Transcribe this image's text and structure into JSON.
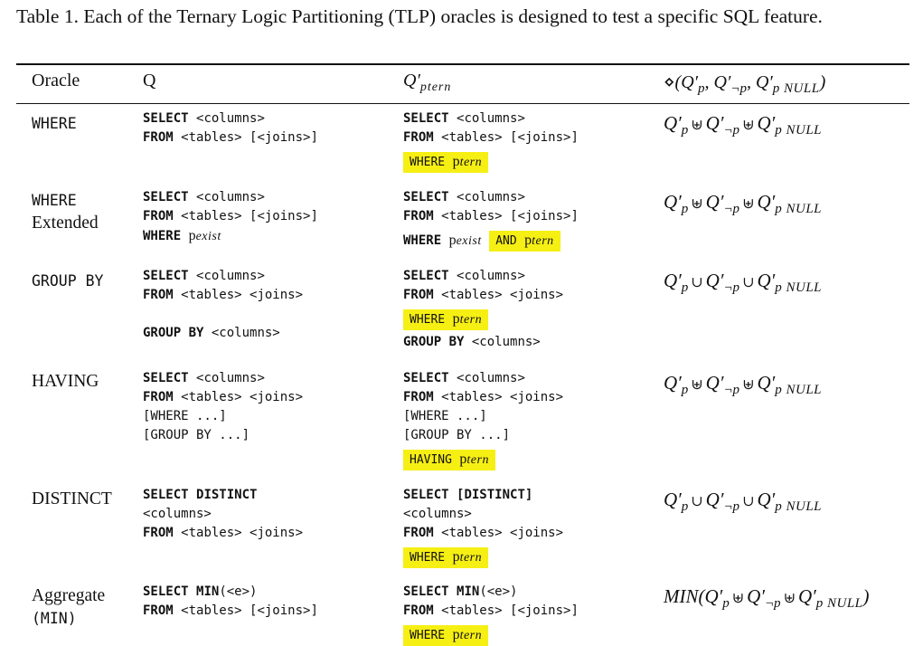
{
  "caption": "Table 1.  Each of the Ternary Logic Partitioning (TLP) oracles is designed to test a specific SQL feature.",
  "headers": {
    "oracle": "Oracle",
    "q": "Q",
    "qp_base": "Q′",
    "qp_sub": "ptern",
    "combine_prefix": "⋄(",
    "combine_suffix": ")"
  },
  "formula_parts": {
    "q": "Q′",
    "p": "p",
    "notp": "¬p",
    "pnull": "p NULL",
    "multiset_union": "⊎",
    "union": "∪",
    "min_prefix": "MIN(",
    "min_suffix": ")"
  },
  "rows": [
    {
      "oracle": "WHERE",
      "q": [
        "SELECT <columns>",
        "FROM <tables> [<joins>]"
      ],
      "qp": [
        "SELECT <columns>",
        "FROM <tables> [<joins>]",
        "WHERE ptern"
      ],
      "combine_op": "⊎"
    },
    {
      "oracle": "WHERE Extended",
      "q": [
        "SELECT <columns>",
        "FROM <tables> [<joins>]",
        "WHERE pexist"
      ],
      "qp": [
        "SELECT <columns>",
        "FROM <tables> [<joins>]",
        "WHERE pexist AND ptern"
      ],
      "combine_op": "⊎"
    },
    {
      "oracle": "GROUP BY",
      "q": [
        "SELECT <columns>",
        "FROM <tables> <joins>",
        "",
        "GROUP BY <columns>"
      ],
      "qp": [
        "SELECT <columns>",
        "FROM <tables> <joins>",
        "WHERE ptern",
        "GROUP BY <columns>"
      ],
      "combine_op": "∪"
    },
    {
      "oracle": "HAVING",
      "q": [
        "SELECT <columns>",
        "FROM <tables> <joins>",
        "[WHERE ...]",
        "[GROUP BY ...]"
      ],
      "qp": [
        "SELECT <columns>",
        "FROM <tables> <joins>",
        "[WHERE ...]",
        "[GROUP BY ...]",
        "HAVING ptern"
      ],
      "combine_op": "⊎"
    },
    {
      "oracle": "DISTINCT",
      "q": [
        "SELECT DISTINCT",
        "<columns>",
        "FROM <tables> <joins>"
      ],
      "qp": [
        "SELECT [DISTINCT]",
        "<columns>",
        "FROM <tables> <joins>",
        "WHERE ptern"
      ],
      "combine_op": "∪"
    },
    {
      "oracle": "Aggregate (MIN)",
      "q": [
        "SELECT MIN(<e>)",
        "FROM <tables> [<joins>]"
      ],
      "qp": [
        "SELECT MIN(<e>)",
        "FROM <tables> [<joins>]",
        "WHERE ptern"
      ],
      "combine_op": "⊎",
      "wrap": "MIN"
    }
  ],
  "tokens": {
    "select": "SELECT",
    "from": "FROM",
    "where": "WHERE",
    "and": "AND",
    "having": "HAVING",
    "group_by": "GROUP BY",
    "distinct": "DISTINCT",
    "min": "MIN",
    "columns": "<columns>",
    "tables_joins_opt": "<tables> [<joins>]",
    "tables_joins": "<tables> <joins>",
    "where_opt": "[WHERE ...]",
    "group_by_opt": "[GROUP BY ...]",
    "select_distinct_opt": "[DISTINCT]",
    "min_e": "(<e>)",
    "p": "p",
    "tern": "tern",
    "exist": "exist",
    "where_ext_row1": "WHERE",
    "where_ext_row2": "Extended",
    "aggr_row1": "Aggregate",
    "aggr_row2": "(MIN)"
  },
  "colors": {
    "highlight": "#f6ef14",
    "text": "#111111"
  }
}
